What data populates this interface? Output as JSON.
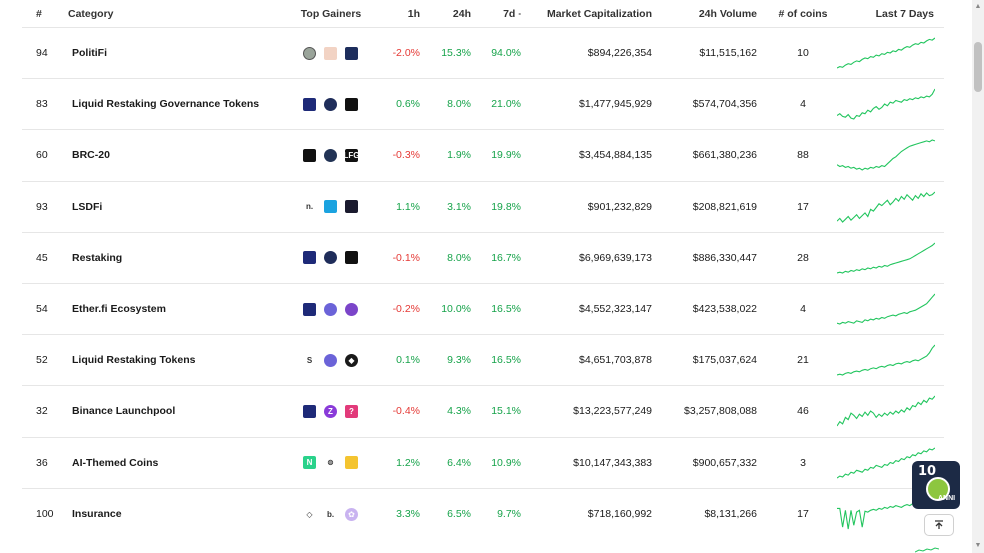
{
  "columns": {
    "rank": "#",
    "category": "Category",
    "top_gainers": "Top Gainers",
    "h1": "1h",
    "h24": "24h",
    "d7": "7d",
    "mcap": "Market Capitalization",
    "volume": "24h Volume",
    "coins": "# of coins",
    "last7": "Last 7 Days"
  },
  "rows": [
    {
      "rank": "94",
      "name": "PolitiFi",
      "h1": "-2.0%",
      "h24": "15.3%",
      "d7": "94.0%",
      "mcap": "$894,226,354",
      "volume": "$11,515,162",
      "coins": "10",
      "gainers": [
        {
          "icon": "portrait-coin-icon",
          "color": "#9aa49a",
          "round": true,
          "t": ""
        },
        {
          "icon": "figure-coin-icon",
          "color": "#f2d3c4",
          "round": false,
          "t": ""
        },
        {
          "icon": "eagle-coin-icon",
          "color": "#1d2d5c",
          "round": false,
          "t": ""
        }
      ],
      "spark": [
        10,
        12,
        11,
        14,
        16,
        15,
        18,
        20,
        19,
        22,
        24,
        23,
        26,
        25,
        28,
        27,
        30,
        29,
        32,
        31,
        34,
        33,
        36,
        35,
        38,
        40,
        39,
        42,
        44,
        43,
        46,
        45,
        48,
        50,
        49,
        52
      ]
    },
    {
      "rank": "83",
      "name": "Liquid Restaking Governance Tokens",
      "h1": "0.6%",
      "h24": "8.0%",
      "d7": "21.0%",
      "mcap": "$1,477,945,929",
      "volume": "$574,704,356",
      "coins": "4",
      "gainers": [
        {
          "icon": "shield-coin-icon",
          "color": "#1e2a78",
          "round": false,
          "t": ""
        },
        {
          "icon": "eigen-coin-icon",
          "color": "#1f2d5a",
          "round": true,
          "t": ""
        },
        {
          "icon": "black-square-coin-icon",
          "color": "#111111",
          "round": false,
          "t": ""
        }
      ],
      "spark": [
        20,
        22,
        19,
        18,
        21,
        17,
        16,
        20,
        19,
        23,
        22,
        26,
        24,
        28,
        30,
        27,
        29,
        33,
        31,
        35,
        34,
        37,
        36,
        35,
        38,
        37,
        39,
        38,
        40,
        39,
        41,
        40,
        42,
        41,
        44,
        50
      ]
    },
    {
      "rank": "60",
      "name": "BRC-20",
      "h1": "-0.3%",
      "h24": "1.9%",
      "d7": "19.9%",
      "mcap": "$3,454,884,135",
      "volume": "$661,380,236",
      "coins": "88",
      "gainers": [
        {
          "icon": "moon-coin-icon",
          "color": "#111111",
          "round": false,
          "t": ""
        },
        {
          "icon": "planet-coin-icon",
          "color": "#223355",
          "round": true,
          "t": ""
        },
        {
          "icon": "lfg-coin-icon",
          "color": "#111111",
          "round": false,
          "t": "LFG"
        }
      ],
      "spark": [
        18,
        16,
        17,
        15,
        16,
        14,
        15,
        13,
        14,
        12,
        14,
        13,
        15,
        14,
        16,
        15,
        17,
        16,
        19,
        22,
        25,
        27,
        30,
        33,
        35,
        37,
        39,
        40,
        41,
        42,
        43,
        44,
        45,
        44,
        46,
        45
      ]
    },
    {
      "rank": "93",
      "name": "LSDFi",
      "h1": "1.1%",
      "h24": "3.1%",
      "d7": "19.8%",
      "mcap": "$901,232,829",
      "volume": "$208,821,619",
      "coins": "17",
      "gainers": [
        {
          "icon": "n-dot-coin-icon",
          "color": "transparent",
          "round": false,
          "t": "n."
        },
        {
          "icon": "cube-coin-icon",
          "color": "#1ba3e0",
          "round": false,
          "t": ""
        },
        {
          "icon": "dark-square-coin-icon",
          "color": "#1a1a2e",
          "round": false,
          "t": ""
        }
      ],
      "spark": [
        15,
        18,
        14,
        17,
        20,
        16,
        19,
        22,
        18,
        21,
        24,
        20,
        28,
        26,
        30,
        34,
        32,
        35,
        38,
        33,
        36,
        40,
        37,
        42,
        39,
        44,
        41,
        38,
        43,
        40,
        45,
        42,
        46,
        43,
        44,
        47
      ]
    },
    {
      "rank": "45",
      "name": "Restaking",
      "h1": "-0.1%",
      "h24": "8.0%",
      "d7": "16.7%",
      "mcap": "$6,969,639,173",
      "volume": "$886,330,447",
      "coins": "28",
      "gainers": [
        {
          "icon": "shield-coin-icon",
          "color": "#1e2a78",
          "round": false,
          "t": ""
        },
        {
          "icon": "eigen-coin-icon",
          "color": "#1f2d5a",
          "round": true,
          "t": ""
        },
        {
          "icon": "black-square-coin-icon",
          "color": "#111111",
          "round": false,
          "t": ""
        }
      ],
      "spark": [
        12,
        13,
        12,
        14,
        13,
        15,
        14,
        16,
        15,
        17,
        16,
        18,
        17,
        19,
        18,
        20,
        19,
        21,
        20,
        22,
        23,
        24,
        25,
        26,
        27,
        28,
        29,
        31,
        33,
        35,
        37,
        39,
        41,
        43,
        45,
        48
      ]
    },
    {
      "rank": "54",
      "name": "Ether.fi Ecosystem",
      "h1": "-0.2%",
      "h24": "10.0%",
      "d7": "16.5%",
      "mcap": "$4,552,323,147",
      "volume": "$423,538,022",
      "coins": "4",
      "gainers": [
        {
          "icon": "shield-coin-icon",
          "color": "#1e2a78",
          "round": false,
          "t": ""
        },
        {
          "icon": "etherfi-coin-icon",
          "color": "#6b63d8",
          "round": true,
          "t": ""
        },
        {
          "icon": "purple-coin-icon",
          "color": "#7b45c9",
          "round": true,
          "t": ""
        }
      ],
      "spark": [
        12,
        11,
        13,
        12,
        14,
        13,
        12,
        15,
        14,
        13,
        16,
        15,
        17,
        16,
        18,
        17,
        19,
        18,
        20,
        21,
        22,
        21,
        23,
        24,
        25,
        24,
        26,
        27,
        28,
        30,
        32,
        34,
        36,
        40,
        44,
        48
      ]
    },
    {
      "rank": "52",
      "name": "Liquid Restaking Tokens",
      "h1": "0.1%",
      "h24": "9.3%",
      "d7": "16.5%",
      "mcap": "$4,651,703,878",
      "volume": "$175,037,624",
      "coins": "21",
      "gainers": [
        {
          "icon": "s-glyph-coin-icon",
          "color": "transparent",
          "round": false,
          "t": "S"
        },
        {
          "icon": "etherfi-coin-icon",
          "color": "#6b63d8",
          "round": true,
          "t": ""
        },
        {
          "icon": "eth-dark-coin-icon",
          "color": "#1a1a1a",
          "round": true,
          "t": "◆"
        }
      ],
      "spark": [
        12,
        13,
        12,
        14,
        15,
        14,
        16,
        17,
        16,
        18,
        19,
        18,
        20,
        21,
        20,
        22,
        23,
        22,
        24,
        25,
        24,
        26,
        27,
        26,
        28,
        29,
        28,
        30,
        31,
        30,
        32,
        34,
        36,
        40,
        46,
        50
      ]
    },
    {
      "rank": "32",
      "name": "Binance Launchpool",
      "h1": "-0.4%",
      "h24": "4.3%",
      "d7": "15.1%",
      "mcap": "$13,223,577,249",
      "volume": "$3,257,808,088",
      "coins": "46",
      "gainers": [
        {
          "icon": "shield-coin-icon",
          "color": "#1e2a78",
          "round": false,
          "t": ""
        },
        {
          "icon": "z-coin-icon",
          "color": "#8a3bd9",
          "round": true,
          "t": "Z"
        },
        {
          "icon": "pink-mark-coin-icon",
          "color": "#e23a7a",
          "round": false,
          "t": "?"
        }
      ],
      "spark": [
        18,
        22,
        20,
        26,
        24,
        30,
        28,
        25,
        29,
        27,
        31,
        28,
        32,
        30,
        26,
        29,
        27,
        30,
        28,
        31,
        29,
        32,
        30,
        33,
        31,
        35,
        33,
        37,
        36,
        40,
        38,
        42,
        40,
        44,
        43,
        46
      ]
    },
    {
      "rank": "36",
      "name": "AI-Themed Coins",
      "h1": "1.2%",
      "h24": "6.4%",
      "d7": "10.9%",
      "mcap": "$10,147,343,383",
      "volume": "$900,657,332",
      "coins": "3",
      "gainers": [
        {
          "icon": "n-green-coin-icon",
          "color": "#2ad28b",
          "round": false,
          "t": "N"
        },
        {
          "icon": "e-circle-coin-icon",
          "color": "transparent",
          "round": false,
          "t": "⊜"
        },
        {
          "icon": "stripes-coin-icon",
          "color": "#f4c430",
          "round": false,
          "t": ""
        }
      ],
      "spark": [
        14,
        16,
        15,
        18,
        17,
        20,
        19,
        22,
        21,
        20,
        23,
        22,
        25,
        24,
        27,
        26,
        25,
        28,
        27,
        30,
        29,
        32,
        31,
        34,
        33,
        36,
        35,
        38,
        37,
        40,
        39,
        42,
        41,
        44,
        43,
        45
      ]
    },
    {
      "rank": "100",
      "name": "Insurance",
      "h1": "3.3%",
      "h24": "6.5%",
      "d7": "9.7%",
      "mcap": "$718,160,992",
      "volume": "$8,131,266",
      "coins": "17",
      "gainers": [
        {
          "icon": "diamond-green-coin-icon",
          "color": "transparent",
          "round": false,
          "t": "◇"
        },
        {
          "icon": "b-dot-coin-icon",
          "color": "transparent",
          "round": false,
          "t": "b."
        },
        {
          "icon": "flower-coin-icon",
          "color": "#c9b3f0",
          "round": true,
          "t": "✿"
        }
      ],
      "spark": [
        40,
        40,
        20,
        38,
        18,
        38,
        22,
        36,
        38,
        20,
        37,
        36,
        38,
        39,
        38,
        40,
        39,
        41,
        40,
        42,
        41,
        43,
        42,
        41,
        43,
        44,
        43,
        45,
        44,
        46,
        45,
        47,
        46,
        48,
        47,
        50
      ]
    }
  ],
  "colors": {
    "positive": "#16a34a",
    "negative": "#e53935",
    "sparkline": "#22c55e"
  },
  "badge": {
    "ten": "10",
    "label": "ANNI"
  },
  "to_top_icon": "arrow-up-icon"
}
